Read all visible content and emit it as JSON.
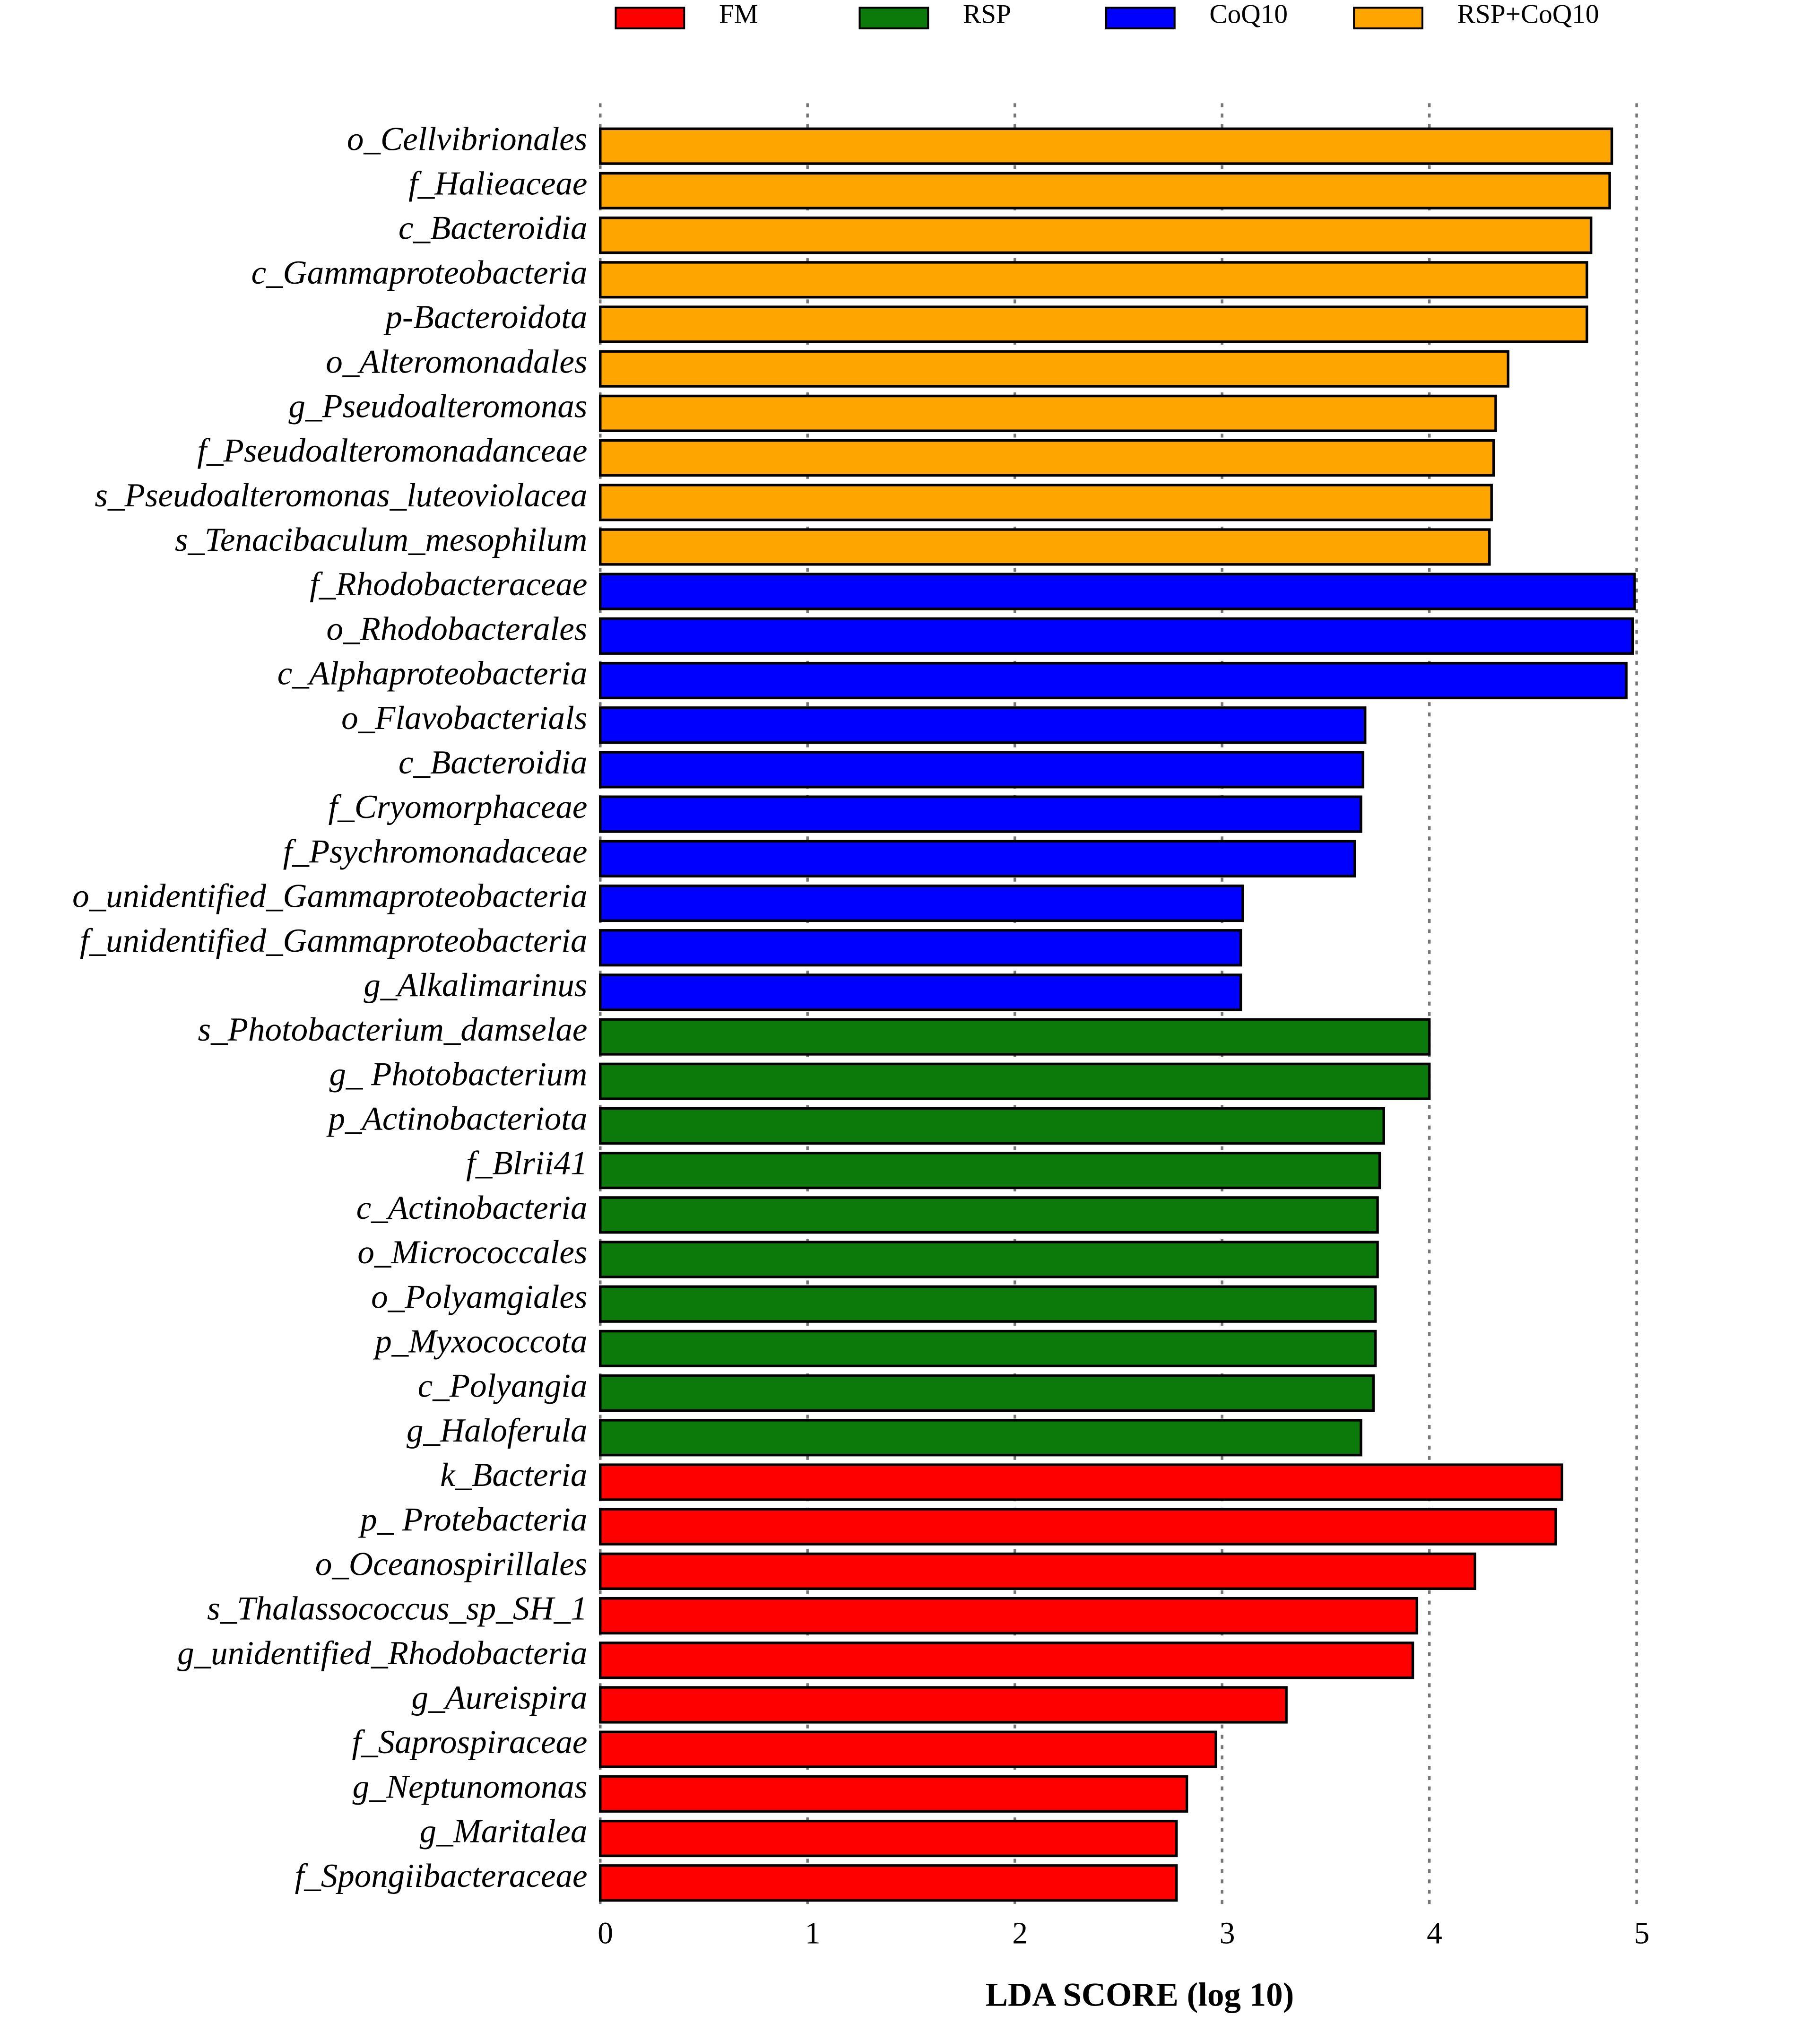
{
  "chart_data": {
    "type": "barh",
    "xlabel": "LDA SCORE (log 10)",
    "xlim": [
      0,
      5
    ],
    "xticks": [
      0,
      1,
      2,
      3,
      4,
      5
    ],
    "grid": true,
    "series": [
      {
        "name": "FM",
        "color": "#ff0000",
        "categories": [
          "k_Bacteria",
          "p_ Protebacteria",
          "o_Oceanospirillales",
          "s_Thalassococcus_sp_SH_1",
          "g_unidentified_Rhodobacteria",
          "g_Aureispira",
          "f_Saprospiraceae",
          "g_Neptunomonas",
          "g_Maritalea",
          "f_Spongiibacteraceae"
        ],
        "values": [
          4.64,
          4.61,
          4.22,
          3.94,
          3.92,
          3.31,
          2.97,
          2.83,
          2.78,
          2.78
        ]
      },
      {
        "name": "RSP",
        "color": "#0b7a0b",
        "categories": [
          "s_Photobacterium_damselae",
          "g_ Photobacterium",
          "p_Actinobacteriota",
          "f_Blrii41",
          "c_Actinobacteria",
          "o_Micrococcales",
          "o_Polyamgiales",
          "p_Myxococcota",
          "c_Polyangia",
          "g_Haloferula"
        ],
        "values": [
          4.0,
          4.0,
          3.78,
          3.76,
          3.75,
          3.75,
          3.74,
          3.74,
          3.73,
          3.67
        ]
      },
      {
        "name": "CoQ10",
        "color": "#0000ff",
        "categories": [
          "f_Rhodobacteraceae",
          "o_Rhodobacterales",
          "c_Alphaproteobacteria",
          "o_Flavobacterials",
          "c_Bacteroidia",
          "f_Cryomorphaceae",
          "f_Psychromonadaceae",
          "o_unidentified_Gammaproteobacteria",
          "f_unidentified_Gammaproteobacteria",
          "g_Alkalimarinus"
        ],
        "values": [
          4.99,
          4.98,
          4.95,
          3.69,
          3.68,
          3.67,
          3.64,
          3.1,
          3.09,
          3.09
        ]
      },
      {
        "name": "RSP+CoQ10",
        "color": "#ffa500",
        "categories": [
          "o_Cellvibrionales",
          "f_Halieaceae",
          "c_Bacteroidia",
          "c_Gammaproteobacteria",
          "p-Bacteroidota",
          "o_Alteromonadales",
          "g_Pseudoalteromonas",
          "f_Pseudoalteromonadanceae",
          "s_Pseudoalteromonas_luteoviolacea",
          "s_Tenacibaculum_mesophilum"
        ],
        "values": [
          4.88,
          4.87,
          4.78,
          4.76,
          4.76,
          4.38,
          4.32,
          4.31,
          4.3,
          4.29
        ]
      }
    ]
  }
}
